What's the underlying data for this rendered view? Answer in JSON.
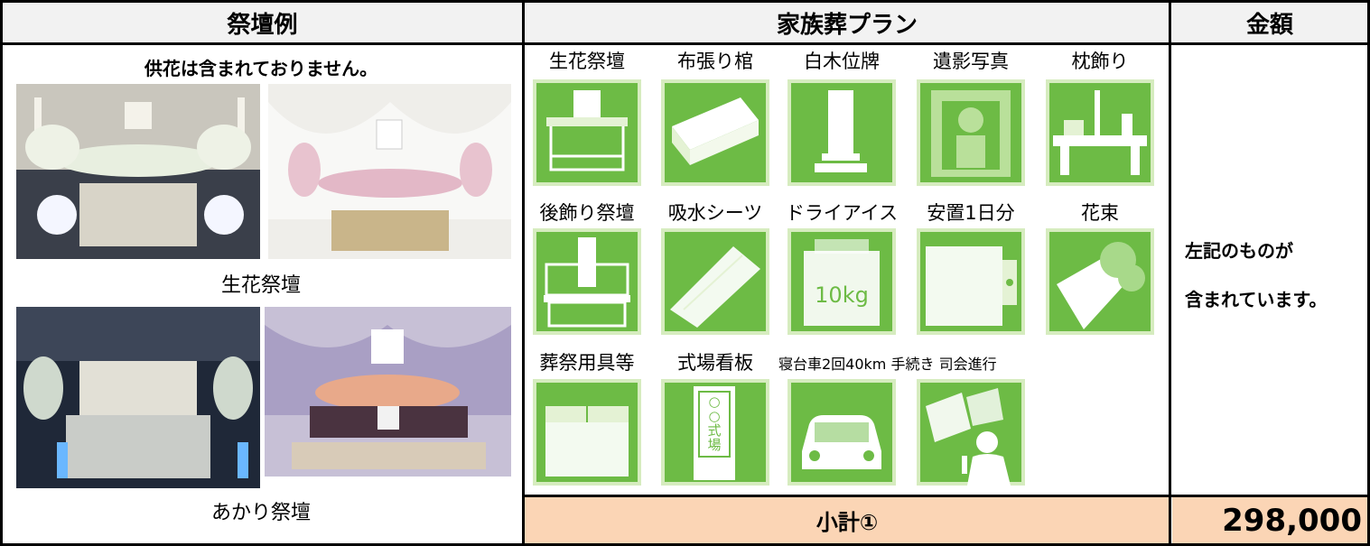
{
  "header": {
    "columns": [
      "祭壇例",
      "家族葬プラン",
      "金額"
    ]
  },
  "altar_examples": {
    "note": "供花は含まれておりません。",
    "captions": [
      "生花祭壇",
      "あかり祭壇"
    ]
  },
  "plan": {
    "rows": [
      [
        "生花祭壇",
        "布張り棺",
        "白木位牌",
        "遺影写真",
        "枕飾り"
      ],
      [
        "後飾り祭壇",
        "吸水シーツ",
        "ドライアイス",
        "安置1日分",
        "花束"
      ],
      [
        "葬祭用具等",
        "式場看板",
        "寝台車2回40km 手続き 司会進行"
      ]
    ],
    "dry_ice_text": "10kg",
    "signboard_text": [
      "○",
      "○",
      "式",
      "場"
    ]
  },
  "included_note": [
    "左記のものが",
    "含まれています。"
  ],
  "subtotal": {
    "label": "小計①",
    "amount": "298,000"
  }
}
